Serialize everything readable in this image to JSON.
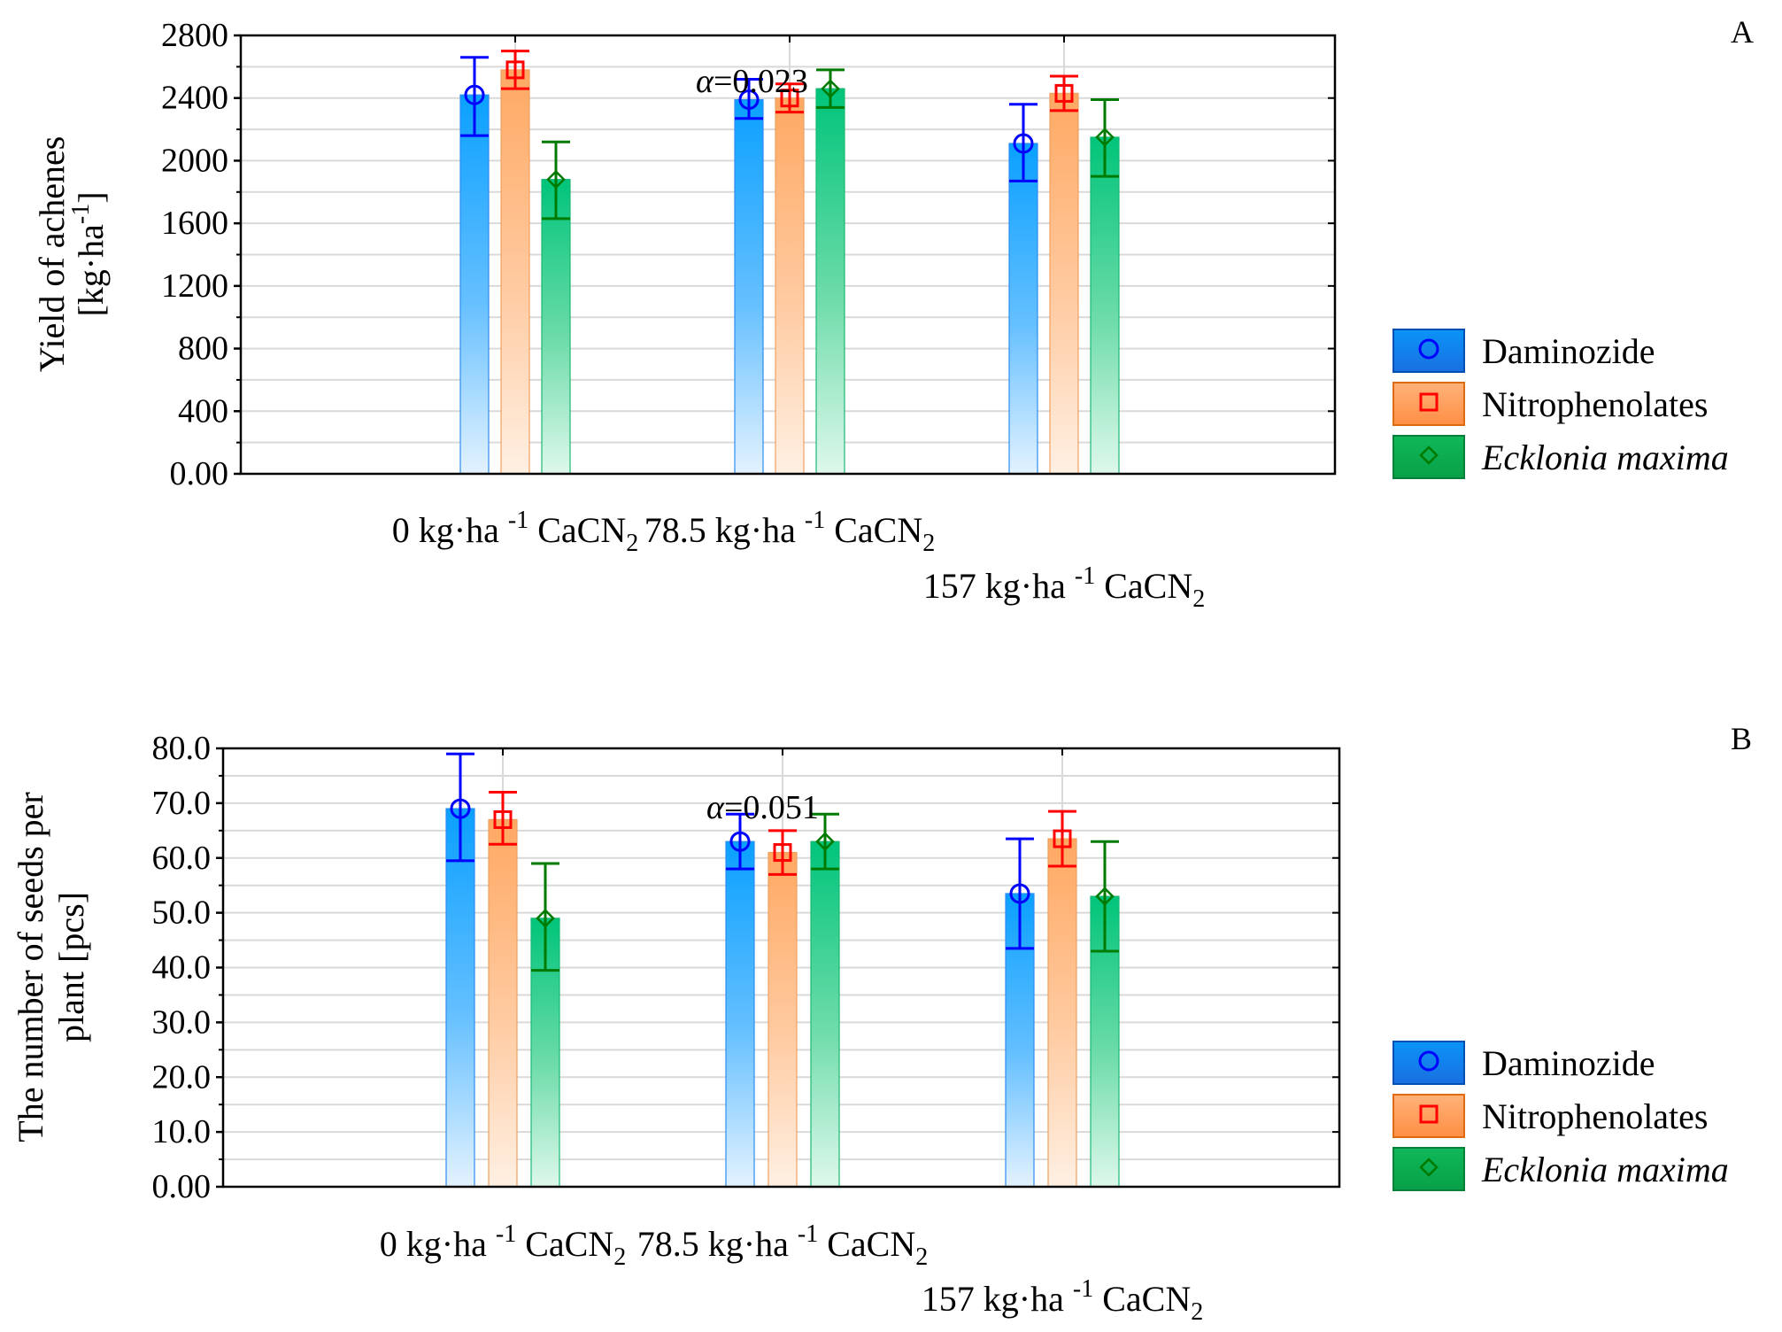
{
  "figure_label_a": "A",
  "figure_label_b": "B",
  "chart_data": [
    {
      "type": "bar",
      "panel": "A",
      "ylabel_line1": "Yield of achenes",
      "ylabel_line2": "[kg·ha",
      "ylabel_sup": "-1",
      "ylabel_end": "]",
      "ylim": [
        0,
        2800
      ],
      "ticks": [
        "0.00",
        "400",
        "800",
        "1200",
        "1600",
        "2000",
        "2400",
        "2800"
      ],
      "tick_values": [
        0,
        400,
        800,
        1200,
        1600,
        2000,
        2400,
        2800
      ],
      "categories": [
        {
          "pre": "0 kg·ha ",
          "sup": "-1",
          "post": " CaCN",
          "sub": "2"
        },
        {
          "pre": "78.5 kg·ha ",
          "sup": "-1",
          "post": " CaCN",
          "sub": "2"
        },
        {
          "pre": "157 kg·ha ",
          "sup": "-1",
          "post": " CaCN",
          "sub": "2"
        }
      ],
      "annotation": {
        "symbol": "α",
        "text": "=0.023"
      },
      "series": [
        {
          "name": "Daminozide",
          "values": [
            2420,
            2390,
            2110
          ],
          "err_low": [
            2160,
            2270,
            1870
          ],
          "err_high": [
            2660,
            2520,
            2360
          ]
        },
        {
          "name": "Nitrophenolates",
          "values": [
            2580,
            2400,
            2430
          ],
          "err_low": [
            2460,
            2310,
            2320
          ],
          "err_high": [
            2700,
            2490,
            2540
          ]
        },
        {
          "name": "Ecklonia maxima",
          "values": [
            1880,
            2460,
            2150
          ],
          "err_low": [
            1630,
            2340,
            1900
          ],
          "err_high": [
            2120,
            2580,
            2390
          ]
        }
      ]
    },
    {
      "type": "bar",
      "panel": "B",
      "ylabel_line1": "The number of seeds per",
      "ylabel_line2": "plant [pcs]",
      "ylim": [
        0,
        80
      ],
      "ticks": [
        "0.00",
        "10.0",
        "20.0",
        "30.0",
        "40.0",
        "50.0",
        "60.0",
        "70.0",
        "80.0"
      ],
      "tick_values": [
        0,
        10,
        20,
        30,
        40,
        50,
        60,
        70,
        80
      ],
      "categories": [
        {
          "pre": "0 kg·ha ",
          "sup": "-1",
          "post": " CaCN",
          "sub": "2"
        },
        {
          "pre": "78.5 kg·ha ",
          "sup": "-1",
          "post": " CaCN",
          "sub": "2"
        },
        {
          "pre": "157 kg·ha ",
          "sup": "-1",
          "post": " CaCN",
          "sub": "2"
        }
      ],
      "annotation": {
        "symbol": "α",
        "text": "=0.051"
      },
      "series": [
        {
          "name": "Daminozide",
          "values": [
            69.0,
            63.0,
            53.5
          ],
          "err_low": [
            59.5,
            58.0,
            43.5
          ],
          "err_high": [
            79.0,
            68.0,
            63.5
          ]
        },
        {
          "name": "Nitrophenolates",
          "values": [
            67.0,
            61.0,
            63.5
          ],
          "err_low": [
            62.5,
            57.0,
            58.5
          ],
          "err_high": [
            72.0,
            65.0,
            68.5
          ]
        },
        {
          "name": "Ecklonia maxima",
          "values": [
            49.0,
            63.0,
            53.0
          ],
          "err_low": [
            39.5,
            58.0,
            43.0
          ],
          "err_high": [
            59.0,
            68.0,
            63.0
          ]
        }
      ]
    }
  ],
  "legend": [
    {
      "label": "Daminozide",
      "italic": false,
      "marker": "circle",
      "fill": "#1a7ee8",
      "border": "#0050b4",
      "marker_color": "#0000ff"
    },
    {
      "label": "Nitrophenolates",
      "italic": false,
      "marker": "square",
      "fill": "#ff9f5a",
      "border": "#e06a10",
      "marker_color": "#ff0000"
    },
    {
      "label": "Ecklonia maxima",
      "italic": true,
      "marker": "diamond",
      "fill": "#0fae4f",
      "border": "#05803a",
      "marker_color": "#007a00"
    }
  ],
  "colors": {
    "series_top": [
      "#0aa0ff",
      "#ffad6f",
      "#00c47a"
    ],
    "series_bottom": [
      "#e3f2ff",
      "#fff0e3",
      "#def8ec"
    ],
    "series_edge": [
      "#2b8ef0",
      "#f0a060",
      "#1ab872"
    ],
    "marker": [
      "#0000ff",
      "#ff0000",
      "#007a00"
    ],
    "grid": "#d9d9d9"
  }
}
